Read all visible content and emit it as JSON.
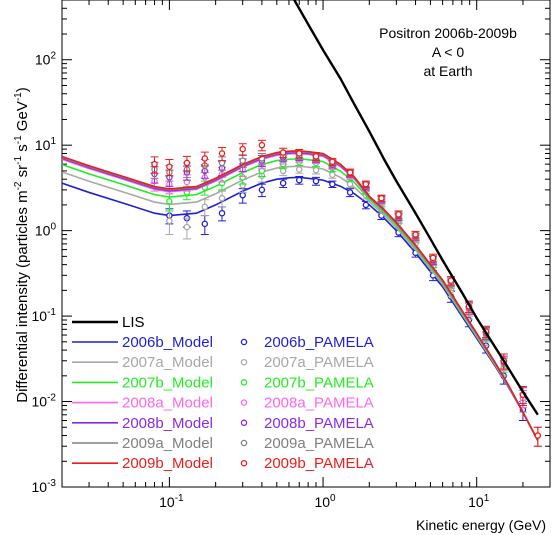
{
  "chart_data": {
    "type": "line",
    "xscale": "log",
    "yscale": "log",
    "xlim": [
      0.02,
      30
    ],
    "ylim": [
      0.001,
      500
    ],
    "xlabel": "Kinetic energy (GeV)",
    "ylabel": "Differential intensity (particles m^-2 sr^-1 s^-1 GeV^-1)",
    "annotation": [
      "Positron 2006b-2009b",
      "A < 0",
      "at Earth"
    ],
    "x_ticks": [
      {
        "value": 0.1,
        "label": "10-1",
        "base": "10",
        "exp": "-1"
      },
      {
        "value": 1,
        "label": "100",
        "base": "10",
        "exp": "0"
      },
      {
        "value": 10,
        "label": "101",
        "base": "10",
        "exp": "1"
      }
    ],
    "y_ticks": [
      {
        "value": 0.001,
        "label": "10-3",
        "base": "10",
        "exp": "-3"
      },
      {
        "value": 0.01,
        "label": "10-2",
        "base": "10",
        "exp": "-2"
      },
      {
        "value": 0.1,
        "label": "10-1",
        "base": "10",
        "exp": "-1"
      },
      {
        "value": 1,
        "label": "100",
        "base": "10",
        "exp": "0"
      },
      {
        "value": 10,
        "label": "101",
        "base": "10",
        "exp": "1"
      },
      {
        "value": 100,
        "label": "102",
        "base": "10",
        "exp": "2"
      }
    ],
    "lis": {
      "name": "LIS",
      "color": "#000000",
      "x": [
        0.65,
        0.8,
        1.0,
        1.3,
        1.6,
        2.0,
        2.5,
        3.0,
        4.0,
        5.0,
        6.0,
        8.0,
        10.0,
        15.0,
        20.0,
        25.0
      ],
      "y": [
        500,
        260,
        130,
        60,
        30,
        14.5,
        6.8,
        3.8,
        1.6,
        0.8,
        0.45,
        0.19,
        0.095,
        0.03,
        0.013,
        0.007
      ]
    },
    "model_shape": [
      [
        0.02,
        3.6
      ],
      [
        0.03,
        2.8
      ],
      [
        0.05,
        2.1
      ],
      [
        0.08,
        1.6
      ],
      [
        0.1,
        1.5
      ],
      [
        0.15,
        1.6
      ],
      [
        0.2,
        2.0
      ],
      [
        0.3,
        2.9
      ],
      [
        0.4,
        3.6
      ],
      [
        0.5,
        4.0
      ],
      [
        0.6,
        4.15
      ],
      [
        0.7,
        4.2
      ],
      [
        0.8,
        4.1
      ],
      [
        1.0,
        3.9
      ],
      [
        1.3,
        3.3
      ],
      [
        1.6,
        2.7
      ],
      [
        2.0,
        2.0
      ],
      [
        2.5,
        1.4
      ],
      [
        3.0,
        1.0
      ],
      [
        4.0,
        0.55
      ],
      [
        5.0,
        0.33
      ],
      [
        6.0,
        0.22
      ],
      [
        8.0,
        0.1
      ],
      [
        10.0,
        0.055
      ],
      [
        13.0,
        0.027
      ],
      [
        16.0,
        0.015
      ],
      [
        20.0,
        0.0075
      ],
      [
        25.0,
        0.0035
      ]
    ],
    "series": [
      {
        "name": "2006b",
        "model_label": "2006b_Model",
        "data_label": "2006b_PAMELA",
        "color": "#1f1fd6",
        "scale": 1.0,
        "points": [
          [
            0.1,
            1.5,
            0.3
          ],
          [
            0.13,
            1.4,
            0.3
          ],
          [
            0.17,
            1.2,
            0.3
          ],
          [
            0.22,
            1.6,
            0.3
          ],
          [
            0.3,
            2.6,
            0.5
          ],
          [
            0.4,
            3.0,
            0.5
          ],
          [
            0.55,
            3.6,
            0.4
          ],
          [
            0.7,
            3.9,
            0.4
          ],
          [
            0.9,
            3.8,
            0.4
          ],
          [
            1.15,
            3.5,
            0.3
          ],
          [
            1.5,
            2.8,
            0.3
          ],
          [
            1.9,
            2.0,
            0.2
          ],
          [
            2.4,
            1.5,
            0.15
          ],
          [
            3.1,
            0.95,
            0.1
          ],
          [
            4.0,
            0.55,
            0.06
          ],
          [
            5.2,
            0.3,
            0.04
          ],
          [
            6.8,
            0.17,
            0.025
          ],
          [
            8.9,
            0.09,
            0.015
          ],
          [
            11.5,
            0.045,
            0.008
          ],
          [
            15.0,
            0.02,
            0.004
          ],
          [
            20.0,
            0.008,
            0.002
          ]
        ]
      },
      {
        "name": "2007a",
        "model_label": "2007a_Model",
        "data_label": "2007a_PAMELA",
        "color": "#a8a8a8",
        "scale": 1.35,
        "points": [
          [
            0.1,
            1.3,
            0.4
          ],
          [
            0.13,
            1.1,
            0.3
          ],
          [
            0.17,
            1.9,
            0.4
          ],
          [
            0.22,
            2.4,
            0.5
          ],
          [
            0.3,
            3.4,
            0.6
          ],
          [
            0.4,
            4.4,
            0.7
          ],
          [
            0.55,
            5.0,
            0.6
          ],
          [
            0.7,
            5.2,
            0.5
          ],
          [
            0.9,
            5.1,
            0.5
          ],
          [
            1.15,
            4.5,
            0.4
          ],
          [
            1.5,
            3.5,
            0.3
          ],
          [
            1.9,
            2.6,
            0.25
          ],
          [
            2.4,
            1.8,
            0.2
          ],
          [
            3.1,
            1.2,
            0.12
          ],
          [
            4.0,
            0.7,
            0.07
          ],
          [
            5.2,
            0.38,
            0.05
          ],
          [
            6.8,
            0.2,
            0.03
          ],
          [
            8.9,
            0.11,
            0.018
          ],
          [
            11.5,
            0.055,
            0.01
          ],
          [
            15.0,
            0.025,
            0.005
          ],
          [
            20.0,
            0.01,
            0.0025
          ]
        ]
      },
      {
        "name": "2007b",
        "model_label": "2007b_Model",
        "data_label": "2007b_PAMELA",
        "color": "#22ee22",
        "scale": 1.65,
        "points": [
          [
            0.1,
            2.2,
            0.5
          ],
          [
            0.13,
            2.8,
            0.5
          ],
          [
            0.17,
            3.2,
            0.6
          ],
          [
            0.22,
            3.6,
            0.6
          ],
          [
            0.3,
            4.2,
            0.7
          ],
          [
            0.4,
            5.0,
            0.7
          ],
          [
            0.55,
            6.0,
            0.7
          ],
          [
            0.7,
            6.4,
            0.6
          ],
          [
            0.9,
            6.2,
            0.6
          ],
          [
            1.15,
            5.4,
            0.5
          ],
          [
            1.5,
            4.2,
            0.4
          ],
          [
            1.9,
            3.0,
            0.3
          ],
          [
            2.4,
            2.1,
            0.2
          ],
          [
            3.1,
            1.35,
            0.14
          ],
          [
            4.0,
            0.8,
            0.08
          ],
          [
            5.2,
            0.42,
            0.05
          ],
          [
            6.8,
            0.23,
            0.03
          ],
          [
            8.9,
            0.12,
            0.02
          ],
          [
            11.5,
            0.06,
            0.01
          ],
          [
            15.0,
            0.027,
            0.005
          ],
          [
            20.0,
            0.011,
            0.0025
          ]
        ]
      },
      {
        "name": "2008a",
        "model_label": "2008a_Model",
        "data_label": "2008a_PAMELA",
        "color": "#ff66ee",
        "scale": 1.9,
        "points": [
          [
            0.08,
            3.8,
            0.9
          ],
          [
            0.1,
            3.5,
            0.8
          ],
          [
            0.13,
            3.7,
            0.8
          ],
          [
            0.17,
            4.2,
            0.8
          ],
          [
            0.22,
            4.6,
            0.9
          ],
          [
            0.3,
            5.2,
            0.9
          ],
          [
            0.4,
            6.2,
            0.9
          ],
          [
            0.55,
            6.8,
            0.8
          ],
          [
            0.7,
            7.0,
            0.7
          ],
          [
            0.9,
            6.8,
            0.7
          ],
          [
            1.15,
            5.8,
            0.6
          ],
          [
            1.5,
            4.4,
            0.4
          ],
          [
            1.9,
            3.2,
            0.3
          ],
          [
            2.4,
            2.2,
            0.2
          ],
          [
            3.1,
            1.4,
            0.14
          ],
          [
            4.0,
            0.82,
            0.08
          ],
          [
            5.2,
            0.44,
            0.05
          ],
          [
            6.8,
            0.24,
            0.03
          ],
          [
            8.9,
            0.12,
            0.02
          ],
          [
            11.5,
            0.062,
            0.01
          ],
          [
            15.0,
            0.028,
            0.005
          ],
          [
            20.0,
            0.011,
            0.0025
          ]
        ]
      },
      {
        "name": "2008b",
        "model_label": "2008b_Model",
        "data_label": "2008b_PAMELA",
        "color": "#8b2be2",
        "scale": 1.95,
        "points": [
          [
            0.08,
            4.6,
            1.0
          ],
          [
            0.1,
            4.2,
            0.9
          ],
          [
            0.13,
            4.8,
            0.9
          ],
          [
            0.17,
            5.0,
            0.9
          ],
          [
            0.22,
            5.4,
            1.0
          ],
          [
            0.3,
            5.9,
            1.0
          ],
          [
            0.4,
            6.6,
            1.0
          ],
          [
            0.55,
            7.2,
            0.8
          ],
          [
            0.7,
            7.3,
            0.7
          ],
          [
            0.9,
            7.0,
            0.7
          ],
          [
            1.15,
            6.0,
            0.6
          ],
          [
            1.5,
            4.6,
            0.4
          ],
          [
            1.9,
            3.3,
            0.3
          ],
          [
            2.4,
            2.3,
            0.2
          ],
          [
            3.1,
            1.45,
            0.14
          ],
          [
            4.0,
            0.85,
            0.08
          ],
          [
            5.2,
            0.45,
            0.05
          ],
          [
            6.8,
            0.25,
            0.03
          ],
          [
            8.9,
            0.125,
            0.02
          ],
          [
            11.5,
            0.063,
            0.01
          ],
          [
            15.0,
            0.029,
            0.005
          ],
          [
            20.0,
            0.012,
            0.0025
          ]
        ]
      },
      {
        "name": "2009a",
        "model_label": "2009a_Model",
        "data_label": "2009a_PAMELA",
        "color": "#808080",
        "scale": 2.0,
        "points": [
          [
            0.08,
            5.2,
            1.1
          ],
          [
            0.1,
            4.8,
            1.0
          ],
          [
            0.13,
            5.2,
            1.0
          ],
          [
            0.17,
            5.8,
            1.0
          ],
          [
            0.22,
            6.2,
            1.1
          ],
          [
            0.3,
            6.6,
            1.1
          ],
          [
            0.4,
            7.0,
            1.0
          ],
          [
            0.55,
            7.5,
            0.9
          ],
          [
            0.7,
            7.6,
            0.8
          ],
          [
            0.9,
            7.2,
            0.7
          ],
          [
            1.15,
            6.2,
            0.6
          ],
          [
            1.5,
            4.7,
            0.45
          ],
          [
            1.9,
            3.4,
            0.3
          ],
          [
            2.4,
            2.35,
            0.2
          ],
          [
            3.1,
            1.5,
            0.15
          ],
          [
            4.0,
            0.86,
            0.08
          ],
          [
            5.2,
            0.46,
            0.05
          ],
          [
            6.8,
            0.25,
            0.03
          ],
          [
            8.9,
            0.125,
            0.02
          ],
          [
            11.5,
            0.064,
            0.01
          ],
          [
            15.0,
            0.03,
            0.006
          ],
          [
            20.0,
            0.012,
            0.003
          ],
          [
            25.0,
            0.004,
            0.001
          ]
        ]
      },
      {
        "name": "2009b",
        "model_label": "2009b_Model",
        "data_label": "2009b_PAMELA",
        "color": "#ee1c1c",
        "scale": 2.05,
        "points": [
          [
            0.08,
            6.0,
            1.3
          ],
          [
            0.1,
            5.6,
            1.2
          ],
          [
            0.13,
            6.2,
            1.2
          ],
          [
            0.17,
            7.0,
            1.3
          ],
          [
            0.22,
            8.0,
            1.4
          ],
          [
            0.3,
            9.0,
            1.4
          ],
          [
            0.4,
            10.0,
            1.4
          ],
          [
            0.55,
            8.2,
            1.0
          ],
          [
            0.7,
            8.0,
            0.9
          ],
          [
            0.9,
            7.4,
            0.8
          ],
          [
            1.15,
            6.4,
            0.6
          ],
          [
            1.5,
            4.8,
            0.45
          ],
          [
            1.9,
            3.5,
            0.3
          ],
          [
            2.4,
            2.4,
            0.2
          ],
          [
            3.1,
            1.55,
            0.15
          ],
          [
            4.0,
            0.9,
            0.08
          ],
          [
            5.2,
            0.48,
            0.05
          ],
          [
            6.8,
            0.26,
            0.03
          ],
          [
            8.9,
            0.13,
            0.02
          ],
          [
            11.5,
            0.066,
            0.01
          ],
          [
            15.0,
            0.03,
            0.006
          ],
          [
            20.0,
            0.012,
            0.003
          ],
          [
            25.0,
            0.004,
            0.001
          ]
        ]
      }
    ]
  }
}
